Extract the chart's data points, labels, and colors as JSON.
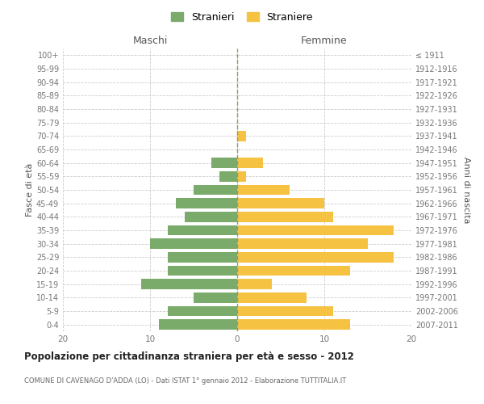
{
  "age_groups": [
    "0-4",
    "5-9",
    "10-14",
    "15-19",
    "20-24",
    "25-29",
    "30-34",
    "35-39",
    "40-44",
    "45-49",
    "50-54",
    "55-59",
    "60-64",
    "65-69",
    "70-74",
    "75-79",
    "80-84",
    "85-89",
    "90-94",
    "95-99",
    "100+"
  ],
  "birth_years": [
    "2007-2011",
    "2002-2006",
    "1997-2001",
    "1992-1996",
    "1987-1991",
    "1982-1986",
    "1977-1981",
    "1972-1976",
    "1967-1971",
    "1962-1966",
    "1957-1961",
    "1952-1956",
    "1947-1951",
    "1942-1946",
    "1937-1941",
    "1932-1936",
    "1927-1931",
    "1922-1926",
    "1917-1921",
    "1912-1916",
    "≤ 1911"
  ],
  "maschi": [
    9,
    8,
    5,
    11,
    8,
    8,
    10,
    8,
    6,
    7,
    5,
    2,
    3,
    0,
    0,
    0,
    0,
    0,
    0,
    0,
    0
  ],
  "femmine": [
    13,
    11,
    8,
    4,
    13,
    18,
    15,
    18,
    11,
    10,
    6,
    1,
    3,
    0,
    1,
    0,
    0,
    0,
    0,
    0,
    0
  ],
  "color_maschi": "#7aab6b",
  "color_femmine": "#f5c242",
  "title": "Popolazione per cittadinanza straniera per età e sesso - 2012",
  "subtitle": "COMUNE DI CAVENAGO D'ADDA (LO) - Dati ISTAT 1° gennaio 2012 - Elaborazione TUTTITALIA.IT",
  "ylabel_left": "Fasce di età",
  "ylabel_right": "Anni di nascita",
  "xlabel_maschi": "Maschi",
  "xlabel_femmine": "Femmine",
  "xlim": 20,
  "legend_stranieri": "Stranieri",
  "legend_straniere": "Straniere",
  "background_color": "#ffffff",
  "grid_color": "#cccccc",
  "bar_height": 0.75
}
